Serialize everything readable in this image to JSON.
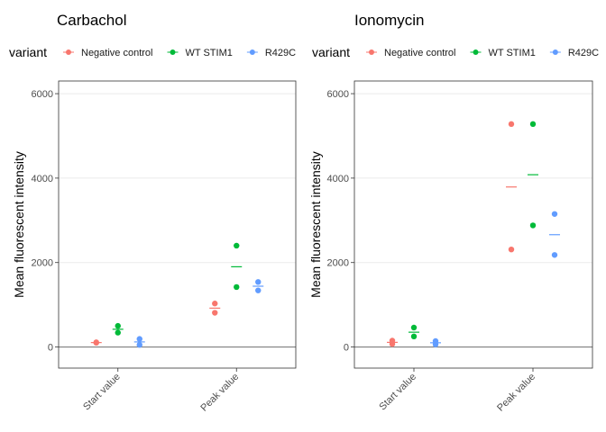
{
  "chart_data": [
    {
      "type": "scatter",
      "title": "Carbachol",
      "xlabel": "",
      "ylabel": "Mean fluorescent intensity",
      "categories": [
        "Start value",
        "Peak value"
      ],
      "ylim": [
        -500,
        6300
      ],
      "yticks": [
        0,
        2000,
        4000,
        6000
      ],
      "grid": true,
      "legend_title": "variant",
      "legend_placement": "top",
      "legend_entries": [
        "Negative control",
        "WT STIM1",
        "R429C"
      ],
      "series": [
        {
          "name": "Negative control",
          "color": "#F8766D",
          "points": [
            {
              "category": "Start value",
              "values": [
                100,
                110
              ],
              "mean": 105
            },
            {
              "category": "Peak value",
              "values": [
                810,
                1030
              ],
              "mean": 920
            }
          ]
        },
        {
          "name": "WT STIM1",
          "color": "#00BA38",
          "points": [
            {
              "category": "Start value",
              "values": [
                340,
                500
              ],
              "mean": 420
            },
            {
              "category": "Peak value",
              "values": [
                1420,
                2400
              ],
              "mean": 1900
            }
          ]
        },
        {
          "name": "R429C",
          "color": "#619CFF",
          "points": [
            {
              "category": "Start value",
              "values": [
                50,
                190
              ],
              "mean": 120
            },
            {
              "category": "Peak value",
              "values": [
                1340,
                1540
              ],
              "mean": 1440
            }
          ]
        }
      ]
    },
    {
      "type": "scatter",
      "title": "Ionomycin",
      "xlabel": "",
      "ylabel": "Mean fluorescent intensity",
      "categories": [
        "Start value",
        "Peak value"
      ],
      "ylim": [
        -500,
        6300
      ],
      "yticks": [
        0,
        2000,
        4000,
        6000
      ],
      "grid": true,
      "legend_title": "variant",
      "legend_placement": "top",
      "legend_entries": [
        "Negative control",
        "WT STIM1",
        "R429C"
      ],
      "series": [
        {
          "name": "Negative control",
          "color": "#F8766D",
          "points": [
            {
              "category": "Start value",
              "values": [
                70,
                150
              ],
              "mean": 110
            },
            {
              "category": "Peak value",
              "values": [
                2310,
                5280
              ],
              "mean": 3790
            }
          ]
        },
        {
          "name": "WT STIM1",
          "color": "#00BA38",
          "points": [
            {
              "category": "Start value",
              "values": [
                250,
                460
              ],
              "mean": 350
            },
            {
              "category": "Peak value",
              "values": [
                2880,
                5280
              ],
              "mean": 4080
            }
          ]
        },
        {
          "name": "R429C",
          "color": "#619CFF",
          "points": [
            {
              "category": "Start value",
              "values": [
                60,
                140
              ],
              "mean": 100
            },
            {
              "category": "Peak value",
              "values": [
                2180,
                3150
              ],
              "mean": 2660
            }
          ]
        }
      ]
    }
  ]
}
